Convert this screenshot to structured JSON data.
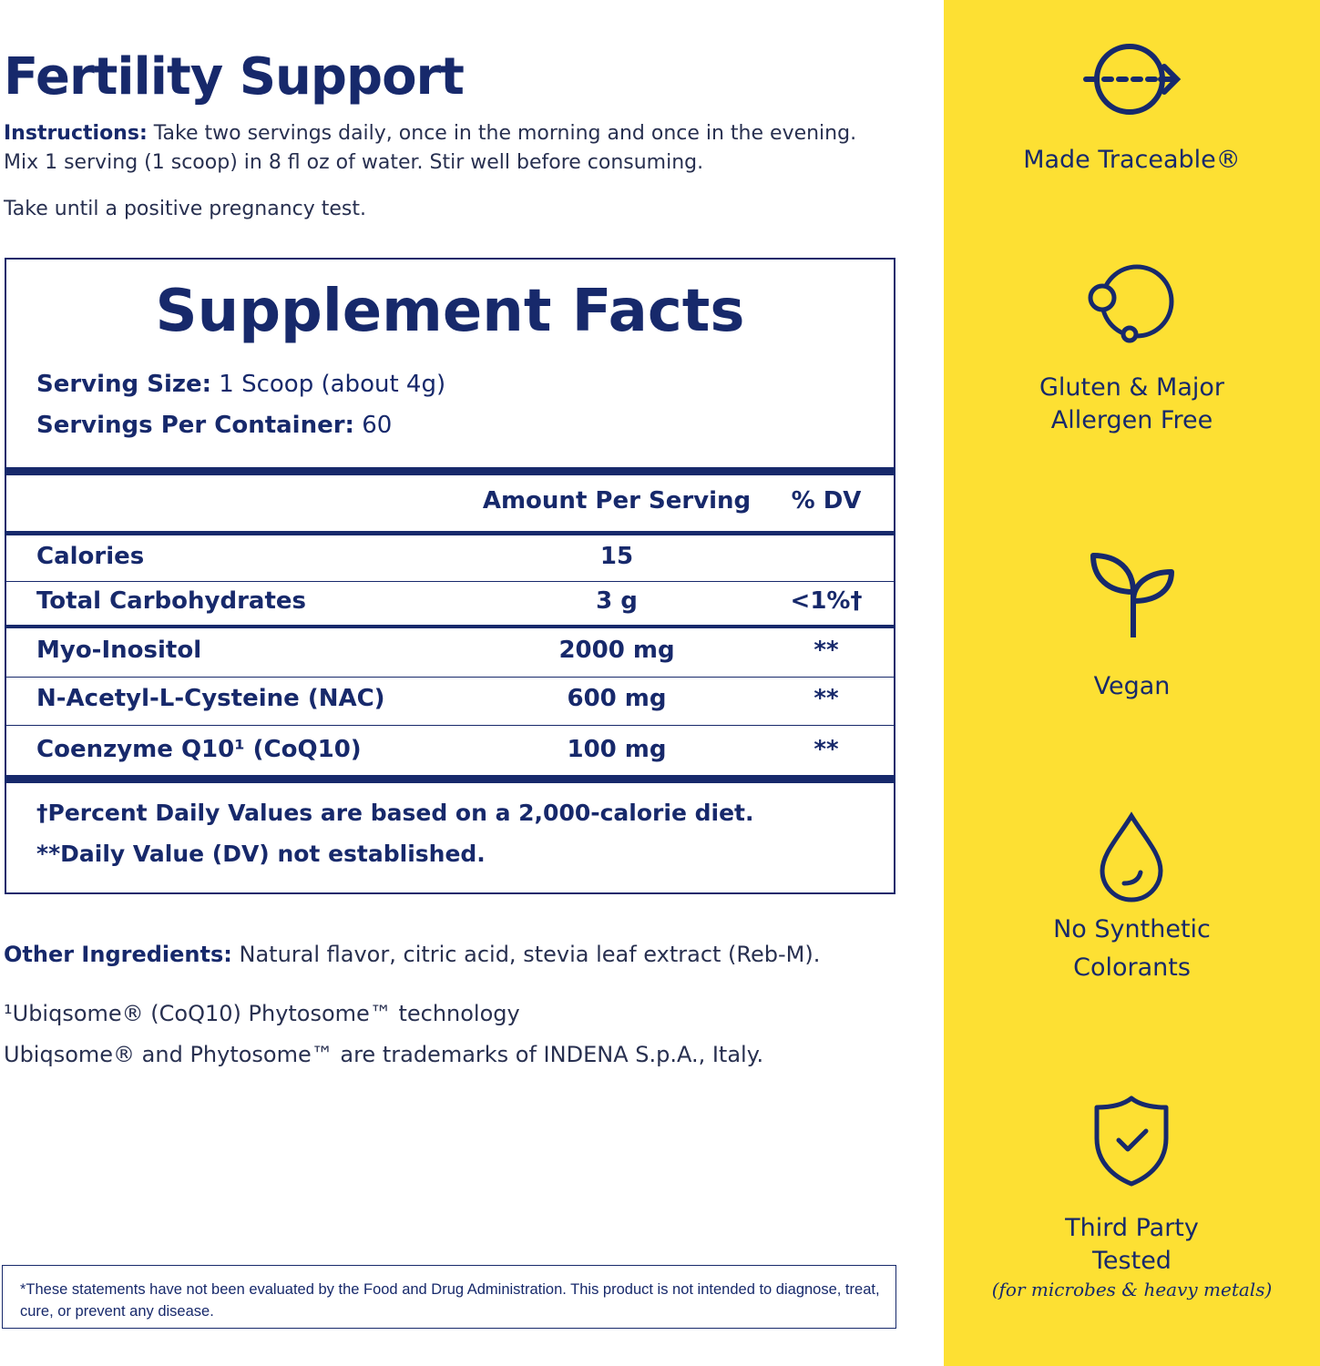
{
  "title": "Fertility Support",
  "instructions": {
    "label": "Instructions:",
    "line1": " Take two servings daily, once in the morning and once in the evening.",
    "line2": "Mix 1 serving (1 scoop) in 8 fl oz of water. Stir well before consuming.",
    "line3": "Take until a positive pregnancy test."
  },
  "facts": {
    "title": "Supplement Facts",
    "serving_size_label": "Serving Size:",
    "serving_size": " 1 Scoop (about 4g)",
    "servings_label": "Servings Per Container:",
    "servings": " 60",
    "col_amount": "Amount Per Serving",
    "col_dv": "% DV",
    "rows": [
      {
        "name": "Calories",
        "amount": "15",
        "dv": ""
      },
      {
        "name": "Total Carbohydrates",
        "amount": "3 g",
        "dv": "<1%†"
      },
      {
        "name": "Myo-Inositol",
        "amount": "2000 mg",
        "dv": "**"
      },
      {
        "name": "N-Acetyl-L-Cysteine (NAC)",
        "amount": "600 mg",
        "dv": "**"
      },
      {
        "name": "Coenzyme Q10¹ (CoQ10)",
        "amount": "100 mg",
        "dv": "**"
      }
    ],
    "foot1": "†Percent Daily Values are based on a 2,000-calorie diet.",
    "foot2": "**Daily Value (DV) not established."
  },
  "other": {
    "label": "Other Ingredients:",
    "text": " Natural flavor, citric acid, stevia leaf extract (Reb-M)."
  },
  "note1": "¹Ubiqsome® (CoQ10) Phytosome™ technology",
  "note2": "Ubiqsome® and Phytosome™ are trademarks of  INDENA  S.p.A., Italy.",
  "disclaimer": "*These statements have not been evaluated by the Food and Drug Administration. This product is not intended to diagnose, treat, cure, or prevent any disease.",
  "colors": {
    "navy": "#17296b",
    "yellow": "#fde033"
  },
  "features": [
    {
      "icon": "traceable-arrow-icon",
      "label": "Made Traceable®"
    },
    {
      "icon": "allergen-free-icon",
      "label1": "Gluten & Major",
      "label2": "Allergen Free"
    },
    {
      "icon": "sprout-icon",
      "label": "Vegan"
    },
    {
      "icon": "water-drop-icon",
      "label1": "No Synthetic",
      "label2": "Colorants"
    },
    {
      "icon": "shield-check-icon",
      "label1": "Third Party",
      "label2": "Tested",
      "sub": "(for microbes & heavy metals)"
    }
  ]
}
